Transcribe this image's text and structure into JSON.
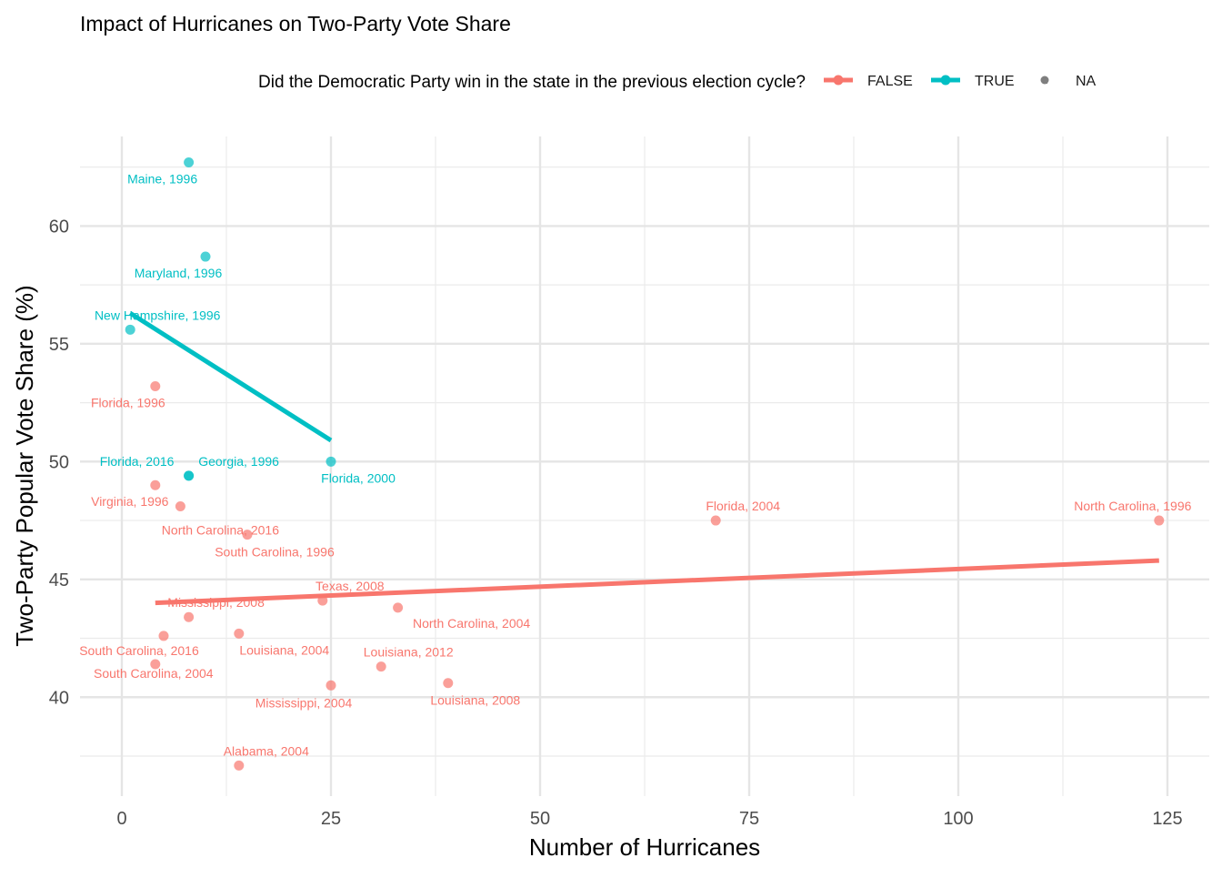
{
  "chart_data": {
    "type": "scatter",
    "title": "Impact of Hurricanes on Two-Party Vote Share",
    "xlabel": "Number of Hurricanes",
    "ylabel": "Two-Party Popular Vote Share (%)",
    "xlim": [
      -5,
      130
    ],
    "ylim": [
      35.8,
      63.8
    ],
    "x_ticks": [
      0,
      25,
      50,
      75,
      100,
      125
    ],
    "y_ticks": [
      40,
      45,
      50,
      55,
      60
    ],
    "x_tick_labels": [
      "0",
      "25",
      "50",
      "75",
      "100",
      "125"
    ],
    "y_tick_labels": [
      "40",
      "45",
      "50",
      "55",
      "60"
    ],
    "x_minor_ticks": [
      12.5,
      37.5,
      62.5,
      87.5,
      112.5
    ],
    "y_minor_ticks": [
      37.5,
      42.5,
      47.5,
      52.5,
      57.5,
      62.5
    ],
    "grid": true,
    "legend": {
      "title": "Did the Democratic Party win in the state in the previous election cycle?",
      "position": "top",
      "entries": [
        {
          "label": "FALSE",
          "color": "#F8766D"
        },
        {
          "label": "TRUE",
          "color": "#00BFC4"
        },
        {
          "label": "NA",
          "color": "#7f7f7f"
        }
      ]
    },
    "colors": {
      "FALSE": "#F8766D",
      "TRUE": "#00BFC4"
    },
    "series": [
      {
        "name": "FALSE",
        "points": [
          {
            "x": 4,
            "y": 53.2,
            "label": "Florida, 1996"
          },
          {
            "x": 4,
            "y": 49.0,
            "label": "Virginia, 1996"
          },
          {
            "x": 7,
            "y": 48.1,
            "label": "North Carolina, 2016"
          },
          {
            "x": 15,
            "y": 46.9,
            "label": "South Carolina, 1996"
          },
          {
            "x": 71,
            "y": 47.5,
            "label": "Florida, 2004"
          },
          {
            "x": 124,
            "y": 47.5,
            "label": "North Carolina, 1996"
          },
          {
            "x": 24,
            "y": 44.1,
            "label": "Texas, 2008"
          },
          {
            "x": 8,
            "y": 43.4,
            "label": "Mississippi, 2008"
          },
          {
            "x": 33,
            "y": 43.8,
            "label": "North Carolina, 2004"
          },
          {
            "x": 5,
            "y": 42.6,
            "label": "South Carolina, 2016"
          },
          {
            "x": 14,
            "y": 42.7,
            "label": "Louisiana, 2004"
          },
          {
            "x": 31,
            "y": 41.3,
            "label": "Louisiana, 2012"
          },
          {
            "x": 4,
            "y": 41.4,
            "label": "South Carolina, 2004"
          },
          {
            "x": 25,
            "y": 40.5,
            "label": "Mississippi, 2004"
          },
          {
            "x": 39,
            "y": 40.6,
            "label": "Louisiana, 2008"
          },
          {
            "x": 14,
            "y": 37.1,
            "label": "Alabama, 2004"
          }
        ],
        "trend": {
          "x": [
            4,
            124
          ],
          "y": [
            44.0,
            45.8
          ]
        }
      },
      {
        "name": "TRUE",
        "points": [
          {
            "x": 8,
            "y": 62.7,
            "label": "Maine, 1996"
          },
          {
            "x": 10,
            "y": 58.7,
            "label": "Maryland, 1996"
          },
          {
            "x": 1,
            "y": 55.6,
            "label": "New Hampshire, 1996"
          },
          {
            "x": 8,
            "y": 49.4,
            "label": "Florida, 2016"
          },
          {
            "x": 8,
            "y": 49.4,
            "label": "Georgia, 1996"
          },
          {
            "x": 25,
            "y": 50.0,
            "label": "Florida, 2000"
          }
        ],
        "trend": {
          "x": [
            1,
            25
          ],
          "y": [
            56.3,
            50.9
          ]
        }
      }
    ]
  }
}
